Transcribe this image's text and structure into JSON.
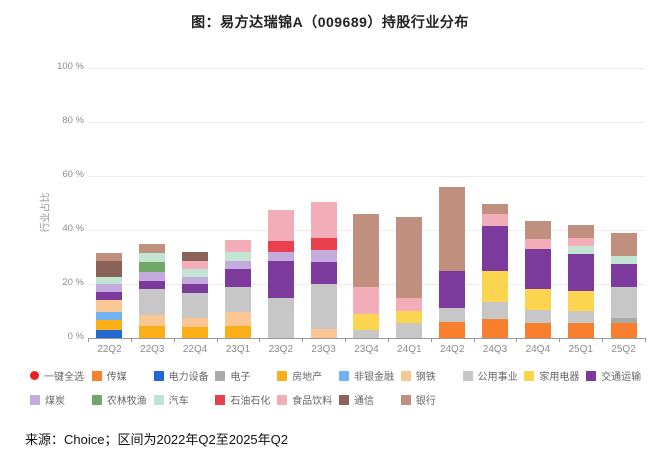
{
  "source": "来源：Choice；区间为2022年Q2至2025年Q2",
  "chart_data": {
    "type": "bar",
    "stacked": true,
    "title": "图：易方达瑞锦A（009689）持股行业分布",
    "ylabel": "行业占比",
    "ylim": [
      0,
      100
    ],
    "yticks": [
      0,
      20,
      40,
      60,
      80,
      100
    ],
    "ytick_suffix": " %",
    "grid": true,
    "legend_position": "bottom",
    "categories": [
      "22Q2",
      "22Q3",
      "22Q4",
      "23Q1",
      "23Q2",
      "23Q3",
      "23Q4",
      "24Q1",
      "24Q2",
      "24Q3",
      "24Q4",
      "25Q1",
      "25Q2"
    ],
    "series": [
      {
        "name": "传媒",
        "color": "#f87f2e",
        "values": [
          0,
          0,
          0,
          0,
          0,
          0,
          0,
          0,
          6,
          7,
          5.5,
          5.5,
          5.5
        ]
      },
      {
        "name": "电力设备",
        "color": "#2169cf",
        "values": [
          3,
          0,
          0,
          0,
          0,
          0,
          0,
          0,
          0,
          0,
          0,
          0,
          0
        ]
      },
      {
        "name": "电子",
        "color": "#a9a9a9",
        "values": [
          0,
          0,
          0,
          0,
          0,
          0,
          0,
          0,
          0,
          0,
          0,
          0,
          2
        ]
      },
      {
        "name": "房地产",
        "color": "#fbae17",
        "values": [
          3.5,
          4.5,
          4,
          4.5,
          0,
          0,
          0,
          0,
          0,
          0,
          0,
          0,
          0
        ]
      },
      {
        "name": "非银金融",
        "color": "#71b2f2",
        "values": [
          3,
          0,
          0,
          0,
          0,
          0,
          0,
          0,
          0,
          0,
          0,
          0,
          0
        ]
      },
      {
        "name": "钢铁",
        "color": "#fac693",
        "values": [
          4.5,
          4,
          3.5,
          5,
          0,
          3.5,
          0,
          0,
          0,
          0,
          0,
          0,
          0
        ]
      },
      {
        "name": "公用事业",
        "color": "#c7c7c7",
        "values": [
          0,
          9.5,
          9,
          9.5,
          15,
          16.5,
          3,
          5.5,
          5,
          6.5,
          5,
          4.5,
          11.5
        ]
      },
      {
        "name": "家用电器",
        "color": "#fcd550",
        "values": [
          0,
          0,
          0,
          0,
          0,
          0,
          6,
          4.5,
          0,
          11.5,
          7.5,
          7.5,
          0
        ]
      },
      {
        "name": "交通运输",
        "color": "#7c3a9d",
        "values": [
          3,
          3,
          3.5,
          6.5,
          13.5,
          8,
          0,
          0,
          14,
          16.5,
          15,
          13.5,
          8.5
        ]
      },
      {
        "name": "煤炭",
        "color": "#c3abdd",
        "values": [
          3,
          3.5,
          2.5,
          3,
          3.5,
          4.5,
          0,
          0,
          0,
          0,
          0,
          0,
          0
        ]
      },
      {
        "name": "农林牧渔",
        "color": "#70a868",
        "values": [
          0,
          3.5,
          0,
          0,
          0,
          0,
          0,
          0,
          0,
          0,
          0,
          0,
          0
        ]
      },
      {
        "name": "汽车",
        "color": "#c2e4d2",
        "values": [
          2.5,
          3.5,
          3,
          3.5,
          0,
          0,
          0,
          0,
          0,
          0,
          0,
          3,
          3
        ]
      },
      {
        "name": "石油石化",
        "color": "#e9404e",
        "values": [
          0,
          0,
          0,
          0,
          4,
          4.5,
          0,
          0,
          0,
          0,
          0,
          0,
          0
        ]
      },
      {
        "name": "食品饮料",
        "color": "#f3adb8",
        "values": [
          0,
          0,
          3,
          4.5,
          11.5,
          13.5,
          10,
          5,
          0,
          4.5,
          3.5,
          3,
          0
        ]
      },
      {
        "name": "通信",
        "color": "#8a6257",
        "values": [
          6,
          0,
          3.5,
          0,
          0,
          0,
          0,
          0,
          0,
          0,
          0,
          0,
          0
        ]
      },
      {
        "name": "银行",
        "color": "#c18f7e",
        "values": [
          3,
          3.5,
          0,
          0,
          0,
          0,
          27,
          30,
          31,
          3.5,
          7,
          5,
          8.5
        ]
      }
    ],
    "legend_items": [
      {
        "label": "一键全选",
        "color": "#e61e26",
        "shape": "circle"
      },
      {
        "label": "传媒",
        "color": "#f87f2e",
        "shape": "square"
      },
      {
        "label": "电力设备",
        "color": "#2169cf",
        "shape": "square"
      },
      {
        "label": "电子",
        "color": "#a9a9a9",
        "shape": "square"
      },
      {
        "label": "房地产",
        "color": "#fbae17",
        "shape": "square"
      },
      {
        "label": "非银金融",
        "color": "#71b2f2",
        "shape": "square"
      },
      {
        "label": "钢铁",
        "color": "#fac693",
        "shape": "square"
      },
      {
        "label": "公用事业",
        "color": "#c7c7c7",
        "shape": "square"
      },
      {
        "label": "家用电器",
        "color": "#fcd550",
        "shape": "square"
      },
      {
        "label": "交通运输",
        "color": "#7c3a9d",
        "shape": "square"
      },
      {
        "label": "煤炭",
        "color": "#c3abdd",
        "shape": "square"
      },
      {
        "label": "农林牧渔",
        "color": "#70a868",
        "shape": "square"
      },
      {
        "label": "汽车",
        "color": "#c2e4d2",
        "shape": "square"
      },
      {
        "label": "石油石化",
        "color": "#e9404e",
        "shape": "square"
      },
      {
        "label": "食品饮料",
        "color": "#f3adb8",
        "shape": "square"
      },
      {
        "label": "通信",
        "color": "#8a6257",
        "shape": "square"
      },
      {
        "label": "银行",
        "color": "#c18f7e",
        "shape": "square"
      }
    ]
  }
}
